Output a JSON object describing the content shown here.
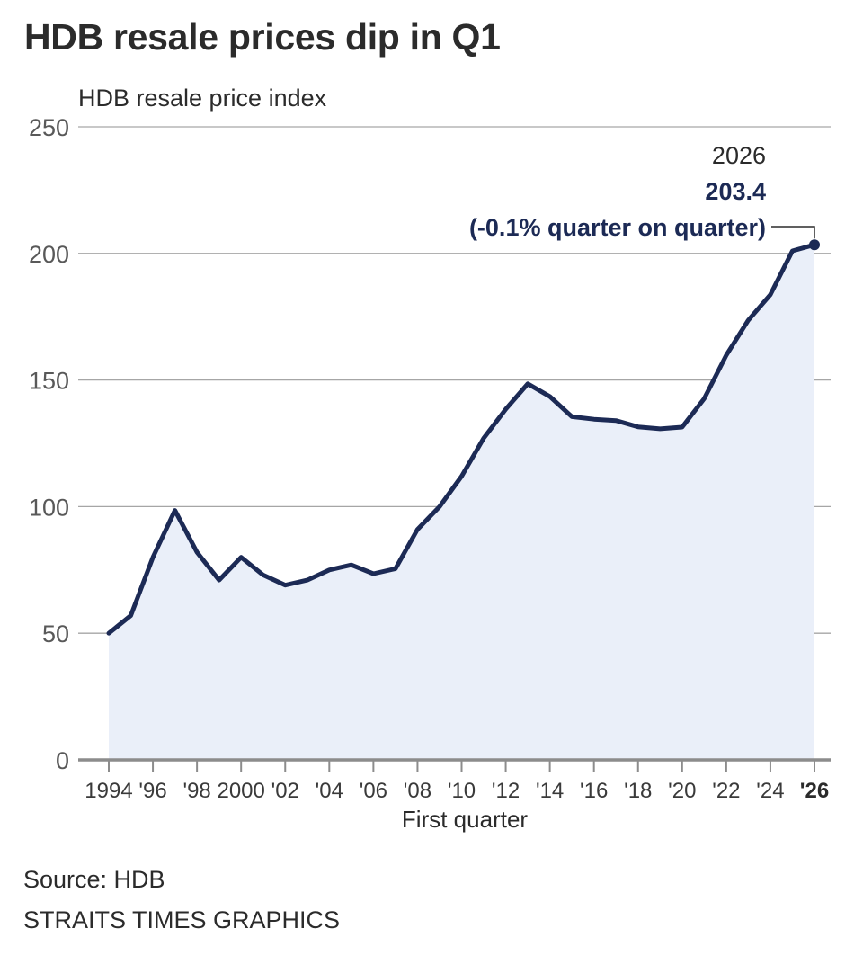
{
  "title": "HDB resale prices dip in Q1",
  "footer": {
    "source": "Source: HDB",
    "credit": "STRAITS TIMES GRAPHICS"
  },
  "colors": {
    "line": "#1c2a55",
    "area": "#eaeff9",
    "grid": "#a6a6a6",
    "axis": "#8c8c8c"
  },
  "chart_data": {
    "type": "area",
    "title": "HDB resale prices dip in Q1",
    "ylabel": "HDB resale price index",
    "xlabel": "First quarter",
    "ylim": [
      0,
      250
    ],
    "yticks": [
      0,
      50,
      100,
      150,
      200,
      250
    ],
    "ytick_labels": [
      "0",
      "50",
      "100",
      "150",
      "200",
      "250"
    ],
    "xlim": [
      1994,
      2026
    ],
    "xticks": [
      1994,
      1996,
      1998,
      2000,
      2002,
      2004,
      2006,
      2008,
      2010,
      2012,
      2014,
      2016,
      2018,
      2020,
      2022,
      2024,
      2026
    ],
    "xtick_labels": [
      "1994",
      "'96",
      "'98",
      "2000",
      "'02",
      "'04",
      "'06",
      "'08",
      "'10",
      "'12",
      "'14",
      "'16",
      "'18",
      "'20",
      "'22",
      "'24",
      "'26"
    ],
    "grid": true,
    "legend": "none",
    "series": [
      {
        "name": "HDB resale price index",
        "x": [
          1994,
          1995,
          1996,
          1997,
          1998,
          1999,
          2000,
          2001,
          2002,
          2003,
          2004,
          2005,
          2006,
          2007,
          2008,
          2009,
          2010,
          2011,
          2012,
          2013,
          2014,
          2015,
          2016,
          2017,
          2018,
          2019,
          2020,
          2021,
          2022,
          2023,
          2024,
          2025,
          2026
        ],
        "values": [
          50.0,
          57.0,
          80.0,
          98.5,
          82.0,
          71.0,
          80.0,
          73.0,
          69.0,
          71.0,
          75.0,
          77.0,
          73.5,
          75.5,
          91.0,
          100.0,
          112.0,
          127.0,
          138.5,
          148.5,
          143.5,
          135.5,
          134.5,
          134.0,
          131.5,
          130.7,
          131.4,
          142.6,
          159.8,
          173.6,
          183.7,
          201.0,
          203.4
        ]
      }
    ],
    "annotation": {
      "x": 2026,
      "year": "2026",
      "value": "203.4",
      "change": "(-0.1% quarter on quarter)"
    }
  }
}
